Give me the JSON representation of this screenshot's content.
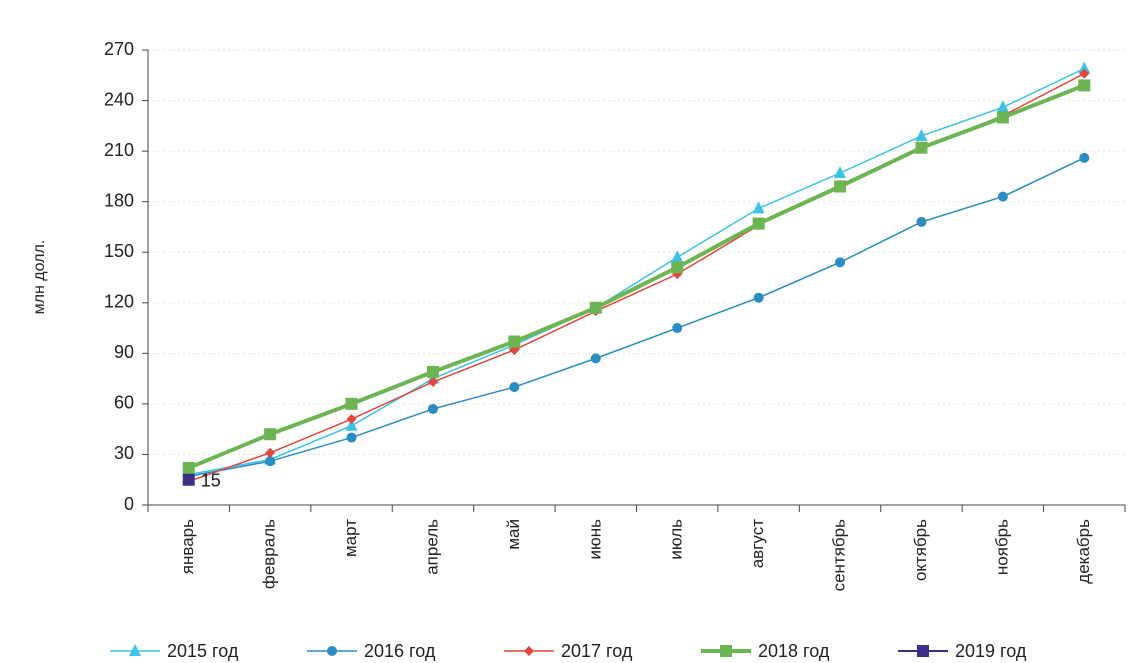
{
  "chart_data": {
    "type": "line",
    "y_label": "млн долл.",
    "categories": [
      "январь",
      "февраль",
      "март",
      "апрель",
      "май",
      "июнь",
      "июль",
      "август",
      "сентябрь",
      "октябрь",
      "ноябрь",
      "декабрь"
    ],
    "series": [
      {
        "name": "2015 год",
        "color": "#3cc3e6",
        "marker": "triangle",
        "line_width": 1.5,
        "values": [
          18,
          27,
          47,
          75,
          95,
          117,
          147,
          176,
          197,
          219,
          236,
          259
        ]
      },
      {
        "name": "2016 год",
        "color": "#2a8cc0",
        "marker": "circle",
        "line_width": 1.5,
        "values": [
          17,
          26,
          40,
          57,
          70,
          87,
          105,
          123,
          144,
          168,
          183,
          206
        ]
      },
      {
        "name": "2017 год",
        "color": "#e5453c",
        "marker": "diamond",
        "line_width": 1.5,
        "values": [
          14,
          31,
          51,
          73,
          92,
          115,
          137,
          166,
          190,
          212,
          231,
          256
        ]
      },
      {
        "name": "2018 год",
        "color": "#6cb552",
        "marker": "square",
        "line_width": 4,
        "values": [
          22,
          42,
          60,
          79,
          97,
          117,
          141,
          167,
          189,
          212,
          230,
          249
        ]
      },
      {
        "name": "2019 год",
        "color": "#3b2f86",
        "marker": "square",
        "line_width": 2,
        "show_labels": true,
        "values": [
          15,
          null,
          null,
          null,
          null,
          null,
          null,
          null,
          null,
          null,
          null,
          null
        ]
      }
    ],
    "ylim": [
      0,
      270
    ],
    "yticks": [
      0,
      30,
      60,
      90,
      120,
      150,
      180,
      210,
      240,
      270
    ],
    "grid": true,
    "legend": "bottom"
  }
}
